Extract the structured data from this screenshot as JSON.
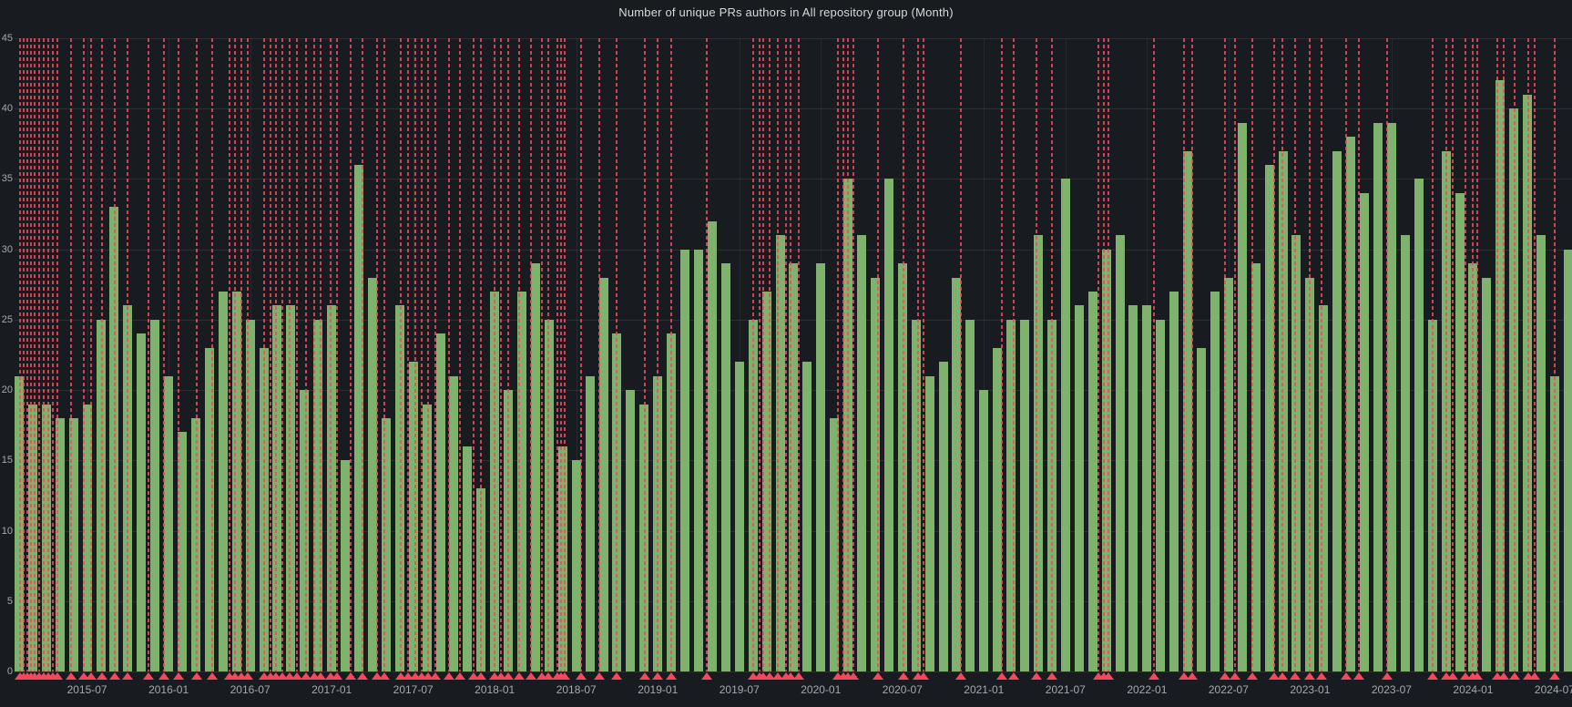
{
  "panel": {
    "title": "Number of unique PRs authors in All repository group (Month)",
    "colors": {
      "background": "#181B1F",
      "bar_fill": "#7EB26D",
      "annotation_red": "#F2495C",
      "grid": "rgba(255,255,255,0.09)",
      "axis_text": "#A6A9B0",
      "title_text": "#D8D9DA"
    }
  },
  "chart_data": {
    "type": "bar",
    "title": "Number of unique PRs authors in All repository group (Month)",
    "xlabel": "",
    "ylabel": "",
    "ylim": [
      0,
      45
    ],
    "grid": true,
    "legend": false,
    "y_ticks": [
      0,
      5,
      10,
      15,
      20,
      25,
      30,
      35,
      40,
      45
    ],
    "x_tick_labels": [
      "2015-07",
      "2016-01",
      "2016-07",
      "2017-01",
      "2017-07",
      "2018-01",
      "2018-07",
      "2019-01",
      "2019-07",
      "2020-01",
      "2020-07",
      "2021-01",
      "2021-07",
      "2022-01",
      "2022-07",
      "2023-01",
      "2023-07",
      "2024-01",
      "2024-07"
    ],
    "categories": [
      "2015-02",
      "2015-03",
      "2015-04",
      "2015-05",
      "2015-06",
      "2015-07",
      "2015-08",
      "2015-09",
      "2015-10",
      "2015-11",
      "2015-12",
      "2016-01",
      "2016-02",
      "2016-03",
      "2016-04",
      "2016-05",
      "2016-06",
      "2016-07",
      "2016-08",
      "2016-09",
      "2016-10",
      "2016-11",
      "2016-12",
      "2017-01",
      "2017-02",
      "2017-03",
      "2017-04",
      "2017-05",
      "2017-06",
      "2017-07",
      "2017-08",
      "2017-09",
      "2017-10",
      "2017-11",
      "2017-12",
      "2018-01",
      "2018-02",
      "2018-03",
      "2018-04",
      "2018-05",
      "2018-06",
      "2018-07",
      "2018-08",
      "2018-09",
      "2018-10",
      "2018-11",
      "2018-12",
      "2019-01",
      "2019-02",
      "2019-03",
      "2019-04",
      "2019-05",
      "2019-06",
      "2019-07",
      "2019-08",
      "2019-09",
      "2019-10",
      "2019-11",
      "2019-12",
      "2020-01",
      "2020-02",
      "2020-03",
      "2020-04",
      "2020-05",
      "2020-06",
      "2020-07",
      "2020-08",
      "2020-09",
      "2020-10",
      "2020-11",
      "2020-12",
      "2021-01",
      "2021-02",
      "2021-03",
      "2021-04",
      "2021-05",
      "2021-06",
      "2021-07",
      "2021-08",
      "2021-09",
      "2021-10",
      "2021-11",
      "2021-12",
      "2022-01",
      "2022-02",
      "2022-03",
      "2022-04",
      "2022-05",
      "2022-06",
      "2022-07",
      "2022-08",
      "2022-09",
      "2022-10",
      "2022-11",
      "2022-12",
      "2023-01",
      "2023-02",
      "2023-03",
      "2023-04",
      "2023-05",
      "2023-06",
      "2023-07",
      "2023-08",
      "2023-09",
      "2023-10",
      "2023-11",
      "2023-12",
      "2024-01",
      "2024-02",
      "2024-03",
      "2024-04",
      "2024-05",
      "2024-06",
      "2024-07",
      "2024-08"
    ],
    "values": [
      21,
      19,
      19,
      18,
      18,
      19,
      25,
      33,
      26,
      24,
      25,
      21,
      17,
      18,
      23,
      27,
      27,
      25,
      23,
      26,
      26,
      20,
      25,
      26,
      15,
      36,
      28,
      18,
      26,
      22,
      19,
      24,
      21,
      16,
      13,
      27,
      20,
      27,
      29,
      25,
      16,
      15,
      21,
      28,
      24,
      20,
      19,
      21,
      24,
      30,
      30,
      32,
      29,
      22,
      25,
      27,
      31,
      29,
      22,
      29,
      18,
      35,
      31,
      28,
      35,
      29,
      25,
      21,
      22,
      28,
      25,
      20,
      23,
      25,
      25,
      31,
      25,
      35,
      26,
      27,
      30,
      31,
      26,
      26,
      25,
      27,
      37,
      23,
      27,
      28,
      39,
      29,
      36,
      37,
      31,
      28,
      26,
      37,
      38,
      34,
      39,
      39,
      31,
      35,
      25,
      37,
      34,
      29,
      28,
      42,
      40,
      41,
      31,
      21,
      30
    ],
    "annotation_marks_month_offset": [
      0.07,
      0.34,
      0.6,
      0.87,
      1.14,
      1.47,
      1.81,
      2.14,
      2.48,
      2.81,
      3.82,
      4.76,
      5.29,
      6.1,
      7.04,
      7.98,
      9.52,
      10.66,
      11.73,
      13.07,
      14.21,
      15.48,
      15.88,
      16.35,
      16.82,
      18.03,
      18.5,
      18.9,
      19.37,
      19.91,
      20.44,
      21.11,
      21.72,
      22.18,
      22.92,
      23.39,
      24.4,
      25.27,
      26.34,
      26.88,
      28.08,
      28.62,
      29.16,
      29.62,
      30.09,
      30.63,
      31.64,
      32.44,
      33.45,
      33.98,
      34.99,
      35.46,
      35.99,
      36.8,
      37.67,
      38.47,
      38.94,
      39.61,
      39.88,
      40.15,
      41.35,
      42.69,
      43.97,
      46.04,
      46.98,
      47.99,
      50.6,
      54.02,
      54.49,
      54.76,
      55.23,
      55.83,
      56.43,
      56.77,
      57.37,
      60.25,
      60.66,
      60.99,
      61.39,
      63.2,
      65.08,
      66.15,
      66.55,
      69.3,
      72.32,
      73.19,
      74.87,
      76.01,
      79.42,
      79.83,
      80.16,
      83.51,
      85.72,
      86.33,
      88.74,
      89.48,
      90.75,
      92.36,
      92.96,
      93.9,
      94.97,
      95.84,
      97.65,
      98.59,
      100.67,
      104.02,
      105.03,
      105.5,
      106.43,
      106.97,
      107.31,
      108.78,
      109.25,
      110.05,
      111.06,
      111.53,
      113.0
    ]
  }
}
